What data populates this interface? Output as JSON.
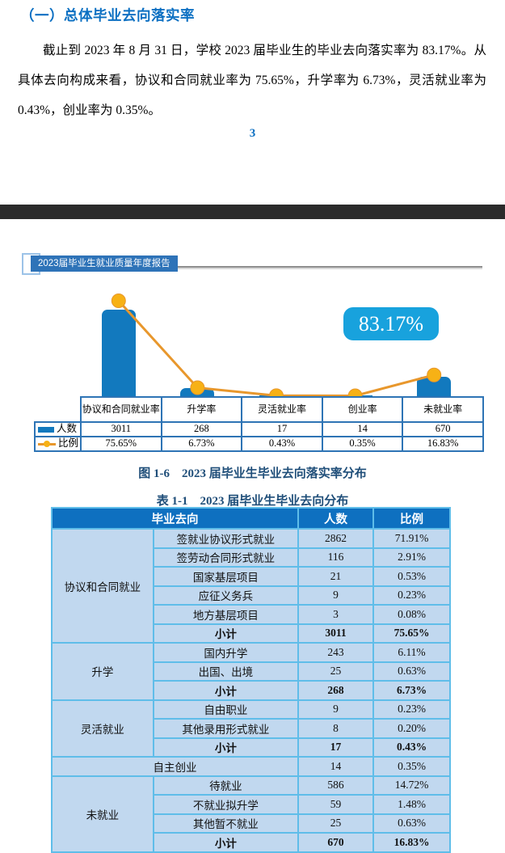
{
  "page": {
    "section_heading": "（一）总体毕业去向落实率",
    "paragraph": "截止到 2023 年 8 月 31 日，学校 2023 届毕业生的毕业去向落实率为 83.17%。从具体去向构成来看，协议和合同就业率为 75.65%，升学率为 6.73%，灵活就业率为 0.43%，创业率为 0.35%。",
    "page_number": "3"
  },
  "report_header": {
    "title": "2023届毕业生就业质量年度报告"
  },
  "figure": {
    "badge": "83.17%",
    "caption": "图 1-6　2023 届毕业生毕业去向落实率分布"
  },
  "chart_data": {
    "type": "bar+line",
    "categories": [
      "协议和合同就业率",
      "升学率",
      "灵活就业率",
      "创业率",
      "未就业率"
    ],
    "series": [
      {
        "name": "人数",
        "type": "bar",
        "values": [
          3011,
          268,
          17,
          14,
          670
        ]
      },
      {
        "name": "比例",
        "type": "line",
        "values": [
          75.65,
          6.73,
          0.43,
          0.35,
          16.83
        ],
        "labels": [
          "75.65%",
          "6.73%",
          "0.43%",
          "0.35%",
          "16.83%"
        ]
      }
    ],
    "annotation": "83.17%",
    "legend_position": "left-table",
    "grid": false
  },
  "colors": {
    "heading": "#0b6fc2",
    "caption": "#1f4e79",
    "divider": "#2b2b2b",
    "hdrBox": "#2e73b8",
    "bar": "#1279be",
    "line": "#e8972c",
    "marker": "#f7b115",
    "badge": "#18a2dd",
    "chartBorder": "#2e74b5",
    "tblHead": "#0e70c0",
    "tblBody": "#c1d8ef",
    "tblBorder": "#5fbde9"
  },
  "table": {
    "caption": "表 1-1　2023 届毕业生毕业去向分布",
    "header": [
      "毕业去向",
      "人数",
      "比例"
    ],
    "rows": [
      {
        "group": "协议和合同就业",
        "rowspan": 6,
        "label": "签就业协议形式就业",
        "num": "2862",
        "pct": "71.91%"
      },
      {
        "label": "签劳动合同形式就业",
        "num": "116",
        "pct": "2.91%"
      },
      {
        "label": "国家基层项目",
        "num": "21",
        "pct": "0.53%"
      },
      {
        "label": "应征义务兵",
        "num": "9",
        "pct": "0.23%"
      },
      {
        "label": "地方基层项目",
        "num": "3",
        "pct": "0.08%"
      },
      {
        "label": "小计",
        "num": "3011",
        "pct": "75.65%",
        "bold": true
      },
      {
        "group": "升学",
        "rowspan": 3,
        "label": "国内升学",
        "num": "243",
        "pct": "6.11%"
      },
      {
        "label": "出国、出境",
        "num": "25",
        "pct": "0.63%"
      },
      {
        "label": "小计",
        "num": "268",
        "pct": "6.73%",
        "bold": true
      },
      {
        "group": "灵活就业",
        "rowspan": 3,
        "label": "自由职业",
        "num": "9",
        "pct": "0.23%"
      },
      {
        "label": "其他录用形式就业",
        "num": "8",
        "pct": "0.20%"
      },
      {
        "label": "小计",
        "num": "17",
        "pct": "0.43%",
        "bold": true
      },
      {
        "merged": "自主创业",
        "num": "14",
        "pct": "0.35%"
      },
      {
        "group": "未就业",
        "rowspan": 4,
        "label": "待就业",
        "num": "586",
        "pct": "14.72%"
      },
      {
        "label": "不就业拟升学",
        "num": "59",
        "pct": "1.48%"
      },
      {
        "label": "其他暂不就业",
        "num": "25",
        "pct": "0.63%"
      },
      {
        "label": "小计",
        "num": "670",
        "pct": "16.83%",
        "bold": true
      }
    ]
  }
}
